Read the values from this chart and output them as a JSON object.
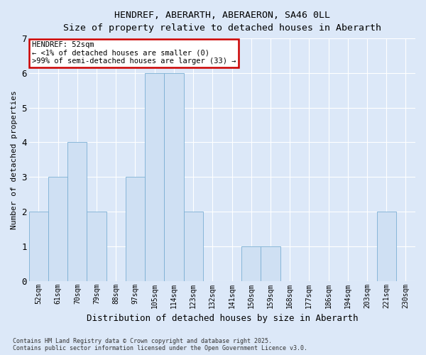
{
  "title_line1": "HENDREF, ABERARTH, ABERAERON, SA46 0LL",
  "title_line2": "Size of property relative to detached houses in Aberarth",
  "xlabel": "Distribution of detached houses by size in Aberarth",
  "ylabel": "Number of detached properties",
  "categories": [
    "52sqm",
    "61sqm",
    "70sqm",
    "79sqm",
    "88sqm",
    "97sqm",
    "105sqm",
    "114sqm",
    "123sqm",
    "132sqm",
    "141sqm",
    "150sqm",
    "159sqm",
    "168sqm",
    "177sqm",
    "186sqm",
    "194sqm",
    "203sqm",
    "221sqm",
    "230sqm"
  ],
  "values": [
    2,
    3,
    4,
    2,
    0,
    3,
    6,
    6,
    2,
    0,
    0,
    1,
    1,
    0,
    0,
    0,
    0,
    0,
    2,
    0
  ],
  "bar_color": "#cfe0f3",
  "bar_edge_color": "#7bafd4",
  "ylim": [
    0,
    7
  ],
  "yticks": [
    0,
    1,
    2,
    3,
    4,
    5,
    6,
    7
  ],
  "annotation_title": "HENDREF: 52sqm",
  "annotation_line2": "← <1% of detached houses are smaller (0)",
  "annotation_line3": ">99% of semi-detached houses are larger (33) →",
  "annotation_box_color": "#ffffff",
  "annotation_box_edge_color": "#cc0000",
  "footer_line1": "Contains HM Land Registry data © Crown copyright and database right 2025.",
  "footer_line2": "Contains public sector information licensed under the Open Government Licence v3.0.",
  "fig_bg_color": "#dce8f8",
  "plot_bg_color": "#dce8f8",
  "grid_color": "#ffffff"
}
